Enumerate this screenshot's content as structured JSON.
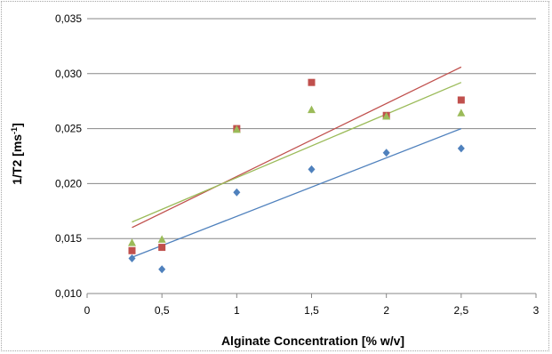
{
  "chart_data": {
    "type": "scatter",
    "title": "",
    "xlabel": "Alginate Concentration [% w/v]",
    "ylabel": "1/T2 [ms",
    "ylabel_superscript": "-1",
    "ylabel_suffix": "]",
    "xlim": [
      0,
      3
    ],
    "ylim": [
      0.01,
      0.035
    ],
    "x_ticks": [
      0,
      0.5,
      1,
      1.5,
      2,
      2.5,
      3
    ],
    "x_tick_labels": [
      "0",
      "0,5",
      "1",
      "1,5",
      "2",
      "2,5",
      "3"
    ],
    "y_ticks": [
      0.01,
      0.015,
      0.02,
      0.025,
      0.03,
      0.035
    ],
    "y_tick_labels": [
      "0,010",
      "0,015",
      "0,020",
      "0,025",
      "0,030",
      "0,035"
    ],
    "grid": "horizontal",
    "legend": "none",
    "series": [
      {
        "marker": "diamond",
        "color": "#4f81bd",
        "x": [
          0.3,
          0.5,
          1,
          1.5,
          2,
          2.5
        ],
        "y": [
          0.0132,
          0.0122,
          0.0192,
          0.0213,
          0.0228,
          0.0232
        ],
        "trendline": {
          "x": [
            0.3,
            2.5
          ],
          "y": [
            0.0133,
            0.025
          ]
        }
      },
      {
        "marker": "square",
        "color": "#c0504d",
        "x": [
          0.3,
          0.5,
          1,
          1.5,
          2,
          2.5
        ],
        "y": [
          0.0139,
          0.0142,
          0.025,
          0.0292,
          0.0262,
          0.0276
        ],
        "trendline": {
          "x": [
            0.3,
            2.5
          ],
          "y": [
            0.016,
            0.0306
          ]
        }
      },
      {
        "marker": "triangle",
        "color": "#9bbb59",
        "x": [
          0.3,
          0.5,
          1,
          1.5,
          2,
          2.5
        ],
        "y": [
          0.0146,
          0.0149,
          0.0249,
          0.0267,
          0.0261,
          0.0264
        ],
        "trendline": {
          "x": [
            0.3,
            2.5
          ],
          "y": [
            0.0165,
            0.0292
          ]
        }
      }
    ]
  }
}
